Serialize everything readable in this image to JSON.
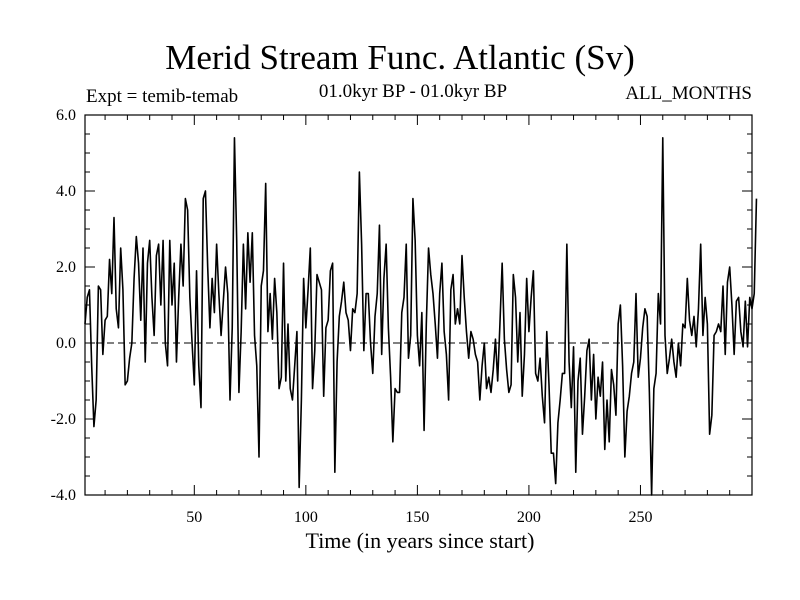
{
  "chart_data": {
    "type": "line",
    "title": "Merid Stream Func. Atlantic (Sv)",
    "subtitle_left": "Expt = temib-temab",
    "subtitle_center": "01.0kyr BP - 01.0kyr BP",
    "subtitle_right": "ALL_MONTHS",
    "xlabel": "Time (in years since start)",
    "ylabel": "",
    "xlim": [
      1,
      300
    ],
    "ylim": [
      -4.0,
      6.0
    ],
    "xticks": [
      50,
      100,
      150,
      200,
      250
    ],
    "xtick_labels": [
      "50",
      "100",
      "150",
      "200",
      "250"
    ],
    "yticks": [
      -4.0,
      -2.0,
      0.0,
      2.0,
      4.0,
      6.0
    ],
    "ytick_labels": [
      "-4.0",
      "-2.0",
      "0.0",
      "2.0",
      "4.0",
      "6.0"
    ],
    "zero_line": true,
    "series": [
      {
        "name": "Merid Stream Func. Atlantic",
        "x_start": 1,
        "x_step": 1,
        "values": [
          0.5,
          1.2,
          1.4,
          -0.6,
          -2.2,
          -1.5,
          1.5,
          1.4,
          -0.3,
          0.6,
          0.7,
          2.2,
          1.3,
          3.3,
          0.9,
          0.4,
          2.5,
          1.4,
          -1.1,
          -1.0,
          -0.4,
          0.0,
          1.7,
          2.8,
          2.1,
          0.6,
          2.5,
          -0.5,
          2.1,
          2.7,
          1.2,
          0.2,
          2.3,
          2.6,
          1.0,
          2.7,
          0.0,
          -0.6,
          2.7,
          1.0,
          2.1,
          -0.5,
          1.2,
          2.6,
          1.5,
          3.8,
          3.5,
          1.2,
          0.0,
          -1.1,
          1.9,
          -0.6,
          -1.7,
          3.8,
          4.0,
          2.0,
          0.4,
          1.7,
          0.8,
          2.6,
          1.3,
          0.2,
          1.1,
          2.0,
          1.3,
          -1.5,
          0.4,
          5.4,
          2.7,
          -1.3,
          0.3,
          2.6,
          0.9,
          2.9,
          1.6,
          2.9,
          0.2,
          -0.6,
          -3.0,
          1.5,
          1.9,
          4.2,
          0.3,
          1.3,
          0.1,
          1.7,
          0.8,
          -1.2,
          -0.9,
          2.1,
          -1.0,
          0.5,
          -1.2,
          -1.5,
          -0.6,
          0.3,
          -3.8,
          -1.5,
          1.7,
          0.4,
          1.4,
          2.5,
          -1.2,
          -0.2,
          1.8,
          1.6,
          1.4,
          -1.4,
          0.4,
          0.6,
          1.9,
          2.1,
          -3.4,
          -0.5,
          0.7,
          1.1,
          1.6,
          0.8,
          0.6,
          -0.2,
          0.9,
          0.8,
          1.3,
          4.5,
          2.6,
          -0.2,
          1.3,
          1.3,
          0.0,
          -0.8,
          0.7,
          1.3,
          3.1,
          -0.3,
          1.7,
          2.6,
          0.4,
          -0.9,
          -2.6,
          -1.2,
          -1.3,
          -1.3,
          0.8,
          1.2,
          2.6,
          -0.4,
          0.2,
          3.8,
          2.7,
          0.2,
          -0.6,
          0.8,
          -2.3,
          0.5,
          2.5,
          1.8,
          1.3,
          0.5,
          -0.4,
          1.3,
          2.1,
          0.3,
          -0.3,
          -1.5,
          1.4,
          1.8,
          0.5,
          0.9,
          0.5,
          2.3,
          1.2,
          0.3,
          -0.4,
          0.3,
          0.1,
          -0.3,
          -0.5,
          -1.5,
          -0.6,
          0.0,
          -1.2,
          -0.9,
          -1.3,
          -0.7,
          0.1,
          -1.0,
          0.5,
          2.1,
          0.1,
          -0.7,
          -1.3,
          -1.1,
          1.8,
          1.2,
          -0.5,
          0.8,
          -1.4,
          -0.3,
          1.7,
          0.3,
          1.2,
          1.9,
          -0.8,
          -1.0,
          -0.4,
          -1.4,
          -2.1,
          0.3,
          -1.1,
          -2.9,
          -2.9,
          -3.7,
          -2.1,
          -1.5,
          -0.8,
          -0.8,
          2.6,
          -0.5,
          -1.7,
          -0.1,
          -3.4,
          -1.0,
          -0.4,
          -2.4,
          -1.4,
          -0.2,
          0.1,
          -1.5,
          -0.3,
          -2.0,
          -0.9,
          -1.4,
          -0.5,
          -2.8,
          -1.5,
          -2.6,
          -0.7,
          -1.1,
          -1.9,
          0.5,
          1.0,
          -0.6,
          -3.0,
          -1.8,
          -1.4,
          -0.8,
          -0.5,
          1.3,
          -0.9,
          -0.4,
          0.4,
          0.9,
          0.7,
          -1.3,
          -4.0,
          -1.2,
          -0.8,
          1.3,
          0.5,
          5.4,
          0.2,
          -0.8,
          -0.4,
          0.1,
          -0.5,
          -0.9,
          0.0,
          -0.6,
          0.5,
          0.4,
          1.7,
          0.6,
          0.2,
          0.7,
          -0.1,
          0.9,
          2.6,
          0.2,
          1.2,
          0.5,
          -2.4,
          -1.9,
          0.2,
          0.3,
          0.5,
          0.3,
          1.5,
          -0.3,
          1.6,
          2.0,
          1.0,
          -0.3,
          1.1,
          1.2,
          0.3,
          -0.1,
          1.1,
          -0.1,
          1.2,
          0.9,
          1.3,
          3.8
        ]
      }
    ]
  }
}
